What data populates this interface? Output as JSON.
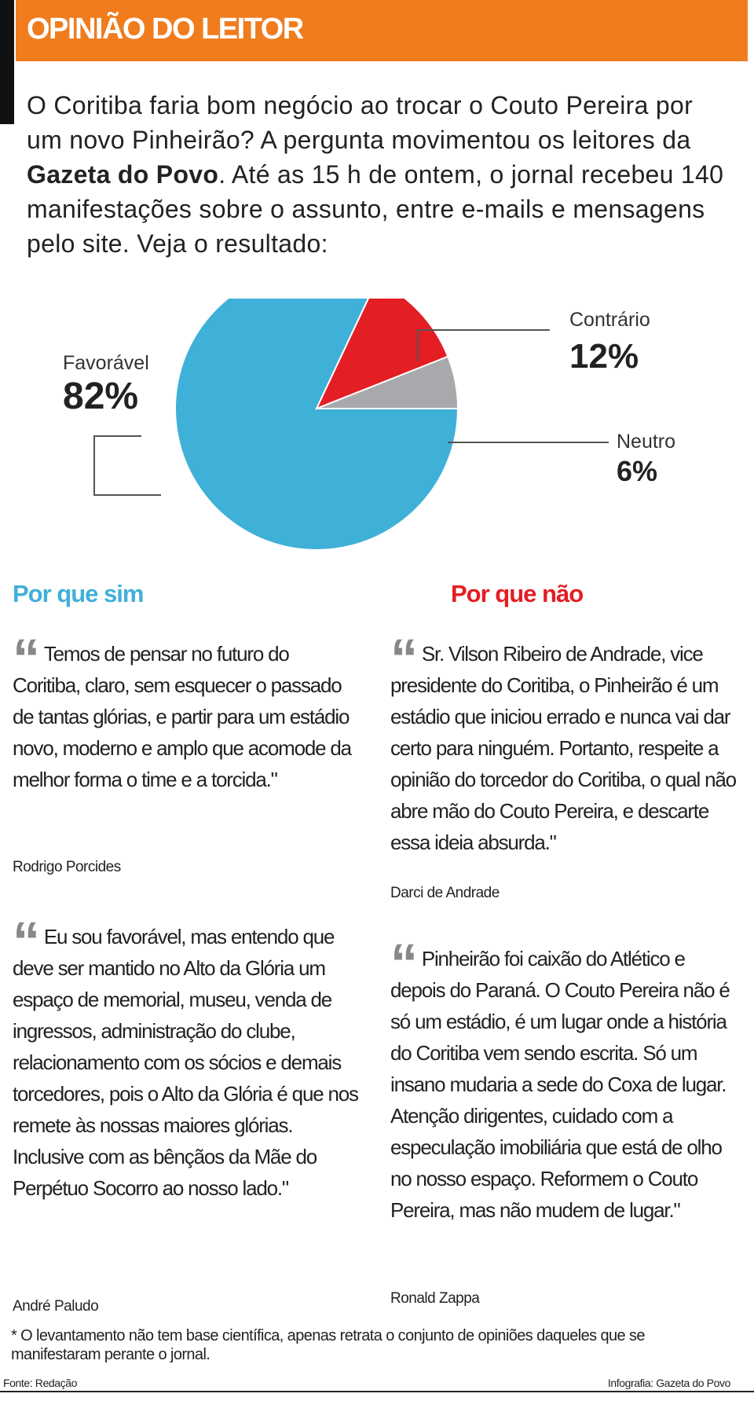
{
  "header": {
    "title": "OPINIÃO DO LEITOR"
  },
  "intro": [
    "O Coritiba faria bom negócio ao trocar o Couto Pereira por um novo Pinheirão? A pergunta movimentou os leitores da ",
    "Gazeta do Povo",
    ". Até as 15 h de ontem, o jornal recebeu 140 manifestações sobre o assunto, entre e-mails e mensagens pelo site. Veja o resultado:"
  ],
  "chart_data": {
    "type": "pie",
    "categories": [
      "Favorável",
      "Contrário",
      "Neutro"
    ],
    "values": [
      82,
      12,
      6
    ],
    "value_labels": [
      "82%",
      "12%",
      "6%"
    ],
    "colors": [
      "#3fb0d8",
      "#e31e24",
      "#a7a9ac"
    ]
  },
  "quote_mark": "“",
  "columns": [
    {
      "heading": "Por que sim",
      "quotes": [
        {
          "text": "Temos de pensar no futuro do Coritiba, claro, sem esquecer o passado de tantas glórias, e partir para um estádio novo, moderno e amplo que acomode da melhor forma o time e a torcida.\"",
          "author": "Rodrigo Porcides"
        },
        {
          "text": "Eu sou favorável, mas entendo que deve ser mantido no Alto da Glória um espaço de memorial, museu, venda de ingressos, administração do clube, relacionamento com os sócios e demais torcedores, pois o Alto da Glória é que nos remete às nossas maiores glórias. Inclusive com as bênçãos da Mãe do Perpétuo Socorro ao nosso lado.\"",
          "author": "André Paludo"
        }
      ]
    },
    {
      "heading": "Por que não",
      "quotes": [
        {
          "text": "Sr. Vilson Ribeiro de Andrade, vice presidente do Coritiba, o Pinheirão é um estádio que iniciou errado e nunca vai dar certo para ninguém. Portanto, respeite a opinião do torcedor do Coritiba, o qual não abre mão do Couto Pereira, e descarte essa ideia absurda.\"",
          "author": "Darci de Andrade"
        },
        {
          "text": "Pinheirão foi caixão do Atlético e depois do Paraná. O Couto Pereira não é só um estádio, é um lugar onde a história do Coritiba vem sendo escrita. Só um insano mudaria a sede do Coxa de lugar. Atenção dirigentes, cuidado com a especulação imobiliária que está de olho no nosso espaço. Reformem o Couto Pereira, mas não mudem de lugar.\"",
          "author": "Ronald Zappa"
        }
      ]
    }
  ],
  "footnote": "* O levantamento não tem base científica, apenas retrata o conjunto de opiniões daqueles que se manifestaram perante o jornal.",
  "source": "Fonte: Redação",
  "credit": "Infografia: Gazeta do Povo"
}
